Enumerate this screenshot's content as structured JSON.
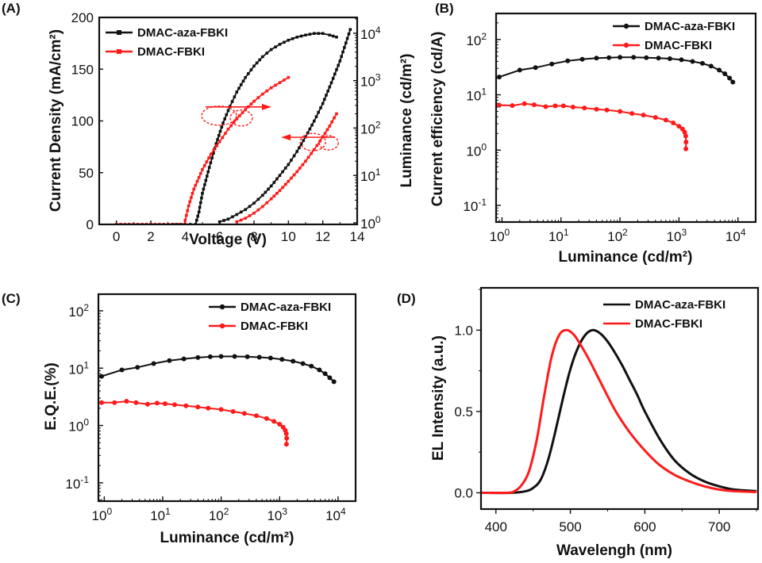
{
  "figure": {
    "colors": {
      "black_series": "#111111",
      "red_series": "#ff1a1a"
    }
  },
  "chart_data": [
    {
      "id": "A",
      "panel_label": "(A)",
      "type": "line",
      "xlabel": "Voltage (V)",
      "ylabel": "Current Density (mA/cm²)",
      "y2label": "Luminance (cd/m²)",
      "xlim": [
        -1,
        14
      ],
      "ylim": [
        0,
        200
      ],
      "y2lim_log10": [
        0,
        4.4
      ],
      "y2scale": "log",
      "xticks": [
        0,
        2,
        4,
        6,
        8,
        10,
        12,
        14
      ],
      "xtick_labels": [
        "0",
        "2",
        "4",
        "6",
        "8",
        "10",
        "12",
        "14"
      ],
      "yticks": [
        0,
        50,
        100,
        150,
        200
      ],
      "ytick_labels": [
        "0",
        "50",
        "100",
        "150",
        "200"
      ],
      "y2ticks_exp": [
        0,
        1,
        2,
        3,
        4
      ],
      "legend": {
        "placement": "top-left",
        "entries": [
          "DMAC-aza-FBKI",
          "DMAC-FBKI"
        ]
      },
      "annotations": [
        {
          "type": "ellipse-arrow",
          "text": "",
          "points_to": "left-axis",
          "at": [
            6.8,
            112
          ]
        },
        {
          "type": "ellipse-arrow",
          "text": "",
          "points_to": "right-axis",
          "at": [
            10.5,
            75
          ]
        }
      ],
      "series": [
        {
          "name": "DMAC-aza-FBKI",
          "axis": "left",
          "quantity": "current density",
          "x": [
            0,
            1,
            2,
            3,
            4,
            4.6,
            4.8,
            5.0,
            5.4,
            5.8,
            6.2,
            6.6,
            7.0,
            7.5,
            8.0,
            8.5,
            9.0,
            9.5,
            10.0,
            10.5,
            11.0,
            11.5,
            12.0,
            12.4,
            12.8
          ],
          "y": [
            0,
            0,
            0,
            0,
            0,
            0,
            12,
            30,
            55,
            78,
            98,
            114,
            128,
            142,
            153,
            162,
            169,
            174,
            178,
            181,
            183,
            184.5,
            184.5,
            183,
            181
          ]
        },
        {
          "name": "DMAC-FBKI",
          "axis": "left",
          "quantity": "current density",
          "x": [
            0,
            1,
            2,
            3,
            3.95,
            4.0,
            4.2,
            4.5,
            5.0,
            5.5,
            6.0,
            6.5,
            7.0,
            7.5,
            8.0,
            8.5,
            9.0,
            9.5,
            10.0
          ],
          "y": [
            0,
            0,
            0,
            0,
            0,
            4,
            18,
            34,
            53,
            68,
            80,
            92,
            102,
            111,
            119,
            126,
            132,
            137,
            142
          ]
        },
        {
          "name": "DMAC-aza-FBKI",
          "axis": "right",
          "quantity": "luminance",
          "x": [
            6.0,
            6.5,
            7.0,
            7.5,
            8.0,
            8.5,
            9.0,
            9.5,
            10.0,
            10.5,
            11.0,
            11.5,
            12.0,
            12.5,
            13.0,
            13.6
          ],
          "y": [
            1.05,
            1.2,
            1.5,
            1.9,
            2.6,
            3.8,
            6,
            10,
            17,
            32,
            65,
            140,
            330,
            900,
            2600,
            12000
          ]
        },
        {
          "name": "DMAC-FBKI",
          "axis": "right",
          "quantity": "luminance",
          "x": [
            7.0,
            7.5,
            8.0,
            8.5,
            9.0,
            9.5,
            10.0,
            10.5,
            11.0,
            11.5,
            12.0,
            12.4,
            12.8
          ],
          "y": [
            1.05,
            1.25,
            1.6,
            2.2,
            3.2,
            4.8,
            7.5,
            12,
            20,
            35,
            65,
            110,
            200
          ]
        }
      ]
    },
    {
      "id": "B",
      "panel_label": "(B)",
      "type": "line",
      "xscale": "log",
      "yscale": "log",
      "xlabel": "Luminance (cd/m²)",
      "ylabel": "Current efficiency (cd/A)",
      "xlim_log10": [
        -0.1,
        4.3
      ],
      "ylim_log10": [
        -1.3,
        2.47
      ],
      "xticks_exp": [
        0,
        1,
        2,
        3,
        4
      ],
      "yticks_exp": [
        -1,
        0,
        1,
        2
      ],
      "legend": {
        "placement": "top-right",
        "entries": [
          "DMAC-aza-FBKI",
          "DMAC-FBKI"
        ]
      },
      "series": [
        {
          "name": "DMAC-aza-FBKI",
          "x": [
            0.9,
            2,
            3.7,
            7,
            13,
            23,
            40,
            65,
            100,
            170,
            280,
            450,
            700,
            1100,
            1700,
            2500,
            3500,
            4800,
            6000,
            7200,
            8200
          ],
          "y": [
            21,
            28,
            31,
            36,
            41,
            44,
            46,
            47,
            47.5,
            47.5,
            47,
            46,
            45,
            43,
            40,
            37,
            33,
            28,
            24,
            20,
            17
          ]
        },
        {
          "name": "DMAC-FBKI",
          "x": [
            0.9,
            1.5,
            2.4,
            3.5,
            5.5,
            8,
            11,
            16,
            25,
            40,
            60,
            100,
            160,
            250,
            400,
            600,
            800,
            1000,
            1150,
            1250,
            1300,
            1320,
            1310
          ],
          "y": [
            6.5,
            6.4,
            6.9,
            6.6,
            6.1,
            6.3,
            6.3,
            6.0,
            5.8,
            5.5,
            5.3,
            5.0,
            4.6,
            4.3,
            3.9,
            3.5,
            3.1,
            2.7,
            2.4,
            2.1,
            1.8,
            1.4,
            1.05
          ]
        }
      ]
    },
    {
      "id": "C",
      "panel_label": "(C)",
      "type": "line",
      "xscale": "log",
      "yscale": "log",
      "xlabel": "Luminance (cd/m²)",
      "ylabel": "E.Q.E.(%)",
      "xlim_log10": [
        -0.1,
        4.3
      ],
      "ylim_log10": [
        -1.32,
        2.29
      ],
      "xticks_exp": [
        0,
        1,
        2,
        3,
        4
      ],
      "yticks_exp": [
        -1,
        0,
        1,
        2
      ],
      "legend": {
        "placement": "top-right",
        "entries": [
          "DMAC-aza-FBKI",
          "DMAC-FBKI"
        ]
      },
      "series": [
        {
          "name": "DMAC-aza-FBKI",
          "x": [
            0.9,
            2,
            3.7,
            7,
            13,
            23,
            40,
            65,
            100,
            170,
            280,
            450,
            700,
            1100,
            1700,
            2500,
            3500,
            4800,
            6000,
            7200,
            8500
          ],
          "y": [
            7.2,
            9.3,
            10.3,
            12,
            13.5,
            14.5,
            15.3,
            15.8,
            16,
            16,
            15.8,
            15.5,
            15,
            14.2,
            13.2,
            12,
            10.8,
            9.3,
            8,
            6.8,
            5.8
          ]
        },
        {
          "name": "DMAC-FBKI",
          "x": [
            0.9,
            1.5,
            2.4,
            3.5,
            5.5,
            8,
            11,
            16,
            25,
            40,
            60,
            100,
            160,
            250,
            400,
            600,
            800,
            1000,
            1150,
            1250,
            1300,
            1320,
            1310
          ],
          "y": [
            2.5,
            2.5,
            2.65,
            2.5,
            2.35,
            2.45,
            2.4,
            2.3,
            2.2,
            2.1,
            2.0,
            1.9,
            1.75,
            1.62,
            1.48,
            1.32,
            1.18,
            1.05,
            0.93,
            0.82,
            0.72,
            0.6,
            0.47
          ]
        }
      ]
    },
    {
      "id": "D",
      "panel_label": "(D)",
      "type": "line",
      "xlabel": "Wavelengh (nm)",
      "ylabel": "EL Intensity (a.u.)",
      "xlim": [
        380,
        752
      ],
      "ylim": [
        -0.1,
        1.26
      ],
      "xticks": [
        400,
        500,
        600,
        700
      ],
      "xtick_labels": [
        "400",
        "500",
        "600",
        "700"
      ],
      "yticks": [
        0.0,
        0.5,
        1.0
      ],
      "ytick_labels": [
        "0.0",
        "0.5",
        "1.0"
      ],
      "legend": {
        "placement": "top-right",
        "entries": [
          "DMAC-aza-FBKI",
          "DMAC-FBKI"
        ]
      },
      "series": [
        {
          "name": "DMAC-aza-FBKI",
          "x": [
            380,
            420,
            440,
            450,
            460,
            470,
            480,
            490,
            500,
            510,
            520,
            530,
            540,
            550,
            560,
            570,
            580,
            590,
            600,
            620,
            640,
            660,
            680,
            700,
            720,
            750
          ],
          "y": [
            0,
            0,
            0.01,
            0.03,
            0.08,
            0.2,
            0.38,
            0.58,
            0.76,
            0.89,
            0.97,
            1.0,
            0.98,
            0.93,
            0.86,
            0.78,
            0.69,
            0.6,
            0.5,
            0.33,
            0.2,
            0.12,
            0.07,
            0.04,
            0.02,
            0.01
          ]
        },
        {
          "name": "DMAC-FBKI",
          "x": [
            380,
            415,
            425,
            435,
            445,
            455,
            465,
            475,
            485,
            495,
            505,
            515,
            525,
            535,
            545,
            555,
            565,
            580,
            600,
            620,
            640,
            660,
            680,
            700,
            720,
            750
          ],
          "y": [
            0,
            0,
            0.01,
            0.05,
            0.14,
            0.33,
            0.6,
            0.84,
            0.97,
            1.0,
            0.97,
            0.9,
            0.82,
            0.73,
            0.64,
            0.55,
            0.47,
            0.37,
            0.26,
            0.17,
            0.11,
            0.07,
            0.04,
            0.02,
            0.01,
            0.005
          ]
        }
      ]
    }
  ]
}
